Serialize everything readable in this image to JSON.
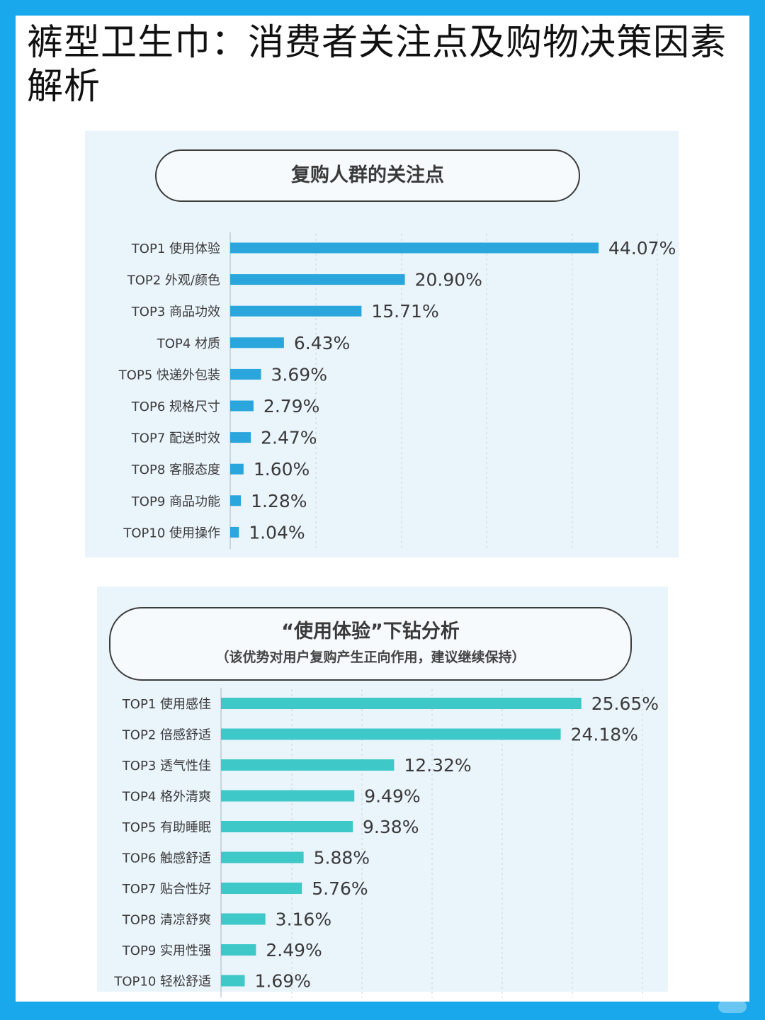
{
  "title": "裤型卫生巾：消费者关注点及购物决策因素解析",
  "colors": {
    "frame": "#19a8ec",
    "panel_bg": "#eaf4fb",
    "bar1": "#2aa6dc",
    "bar2": "#3ec8c8"
  },
  "chart_data": [
    {
      "type": "bar",
      "orientation": "horizontal",
      "title": "复购人群的关注点",
      "categories": [
        "TOP1 使用体验",
        "TOP2 外观/颜色",
        "TOP3 商品功效",
        "TOP4 材质",
        "TOP5 快递外包装",
        "TOP6 规格尺寸",
        "TOP7 配送时效",
        "TOP8 客服态度",
        "TOP9 商品功能",
        "TOP10 使用操作"
      ],
      "values": [
        44.07,
        20.9,
        15.71,
        6.43,
        3.69,
        2.79,
        2.47,
        1.6,
        1.28,
        1.04
      ],
      "labels": [
        "44.07%",
        "20.90%",
        "15.71%",
        "6.43%",
        "3.69%",
        "2.79%",
        "2.47%",
        "1.60%",
        "1.28%",
        "1.04%"
      ],
      "unit": "%",
      "xlim": [
        0,
        50
      ],
      "grid": true,
      "color": "#2aa6dc"
    },
    {
      "type": "bar",
      "orientation": "horizontal",
      "title": "“使用体验”下钻分析",
      "subtitle": "（该优势对用户复购产生正向作用，建议继续保持）",
      "categories": [
        "TOP1 使用感佳",
        "TOP2 倍感舒适",
        "TOP3 透气性佳",
        "TOP4 格外清爽",
        "TOP5 有助睡眠",
        "TOP6 触感舒适",
        "TOP7 贴合性好",
        "TOP8 清凉舒爽",
        "TOP9 实用性强",
        "TOP10 轻松舒适"
      ],
      "values": [
        25.65,
        24.18,
        12.32,
        9.49,
        9.38,
        5.88,
        5.76,
        3.16,
        2.49,
        1.69
      ],
      "labels": [
        "25.65%",
        "24.18%",
        "12.32%",
        "9.49%",
        "9.38%",
        "5.88%",
        "5.76%",
        "3.16%",
        "2.49%",
        "1.69%"
      ],
      "unit": "%",
      "xlim": [
        0,
        30
      ],
      "grid": true,
      "color": "#3ec8c8"
    }
  ]
}
